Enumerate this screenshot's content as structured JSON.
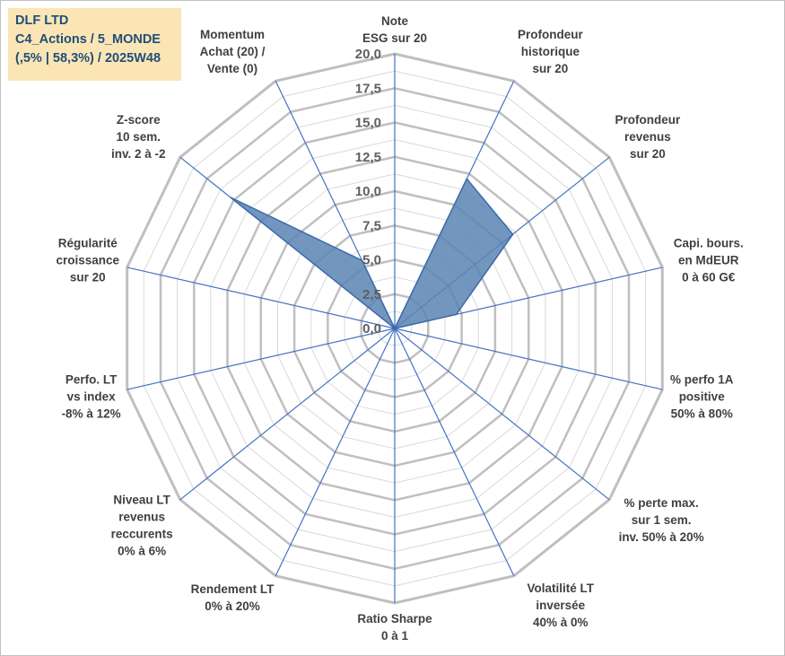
{
  "title": {
    "line1": "DLF LTD",
    "line2": "C4_Actions / 5_MONDE",
    "line3": "(,5% | 58,3%) / 2025W48"
  },
  "chart_data": {
    "type": "radar",
    "r_range": [
      0,
      20
    ],
    "tick_labels": [
      "0,0",
      "2,5",
      "5,0",
      "7,5",
      "10,0",
      "12,5",
      "15,0",
      "17,5",
      "20,0"
    ],
    "axes": [
      [
        "Note",
        "ESG sur 20"
      ],
      [
        "Profondeur",
        "historique",
        "sur 20"
      ],
      [
        "Profondeur",
        "revenus",
        "sur 20"
      ],
      [
        "Capi. bours.",
        "en MdEUR",
        "0 à 60 G€"
      ],
      [
        "% perfo 1A",
        "positive",
        "50% à 80%"
      ],
      [
        "% perte max.",
        "sur 1 sem.",
        "inv. 50% à 20%"
      ],
      [
        "Volatilité LT",
        "inversée",
        "40% à 0%"
      ],
      [
        "Ratio Sharpe",
        "0 à 1"
      ],
      [
        "Rendement LT",
        "0% à 20%"
      ],
      [
        "Niveau LT",
        "revenus",
        "reccurents",
        "0% à 6%"
      ],
      [
        "Perfo. LT",
        "vs index",
        "-8% à 12%"
      ],
      [
        "Régularité",
        "croissance",
        "sur 20"
      ],
      [
        "Z-score",
        "10 sem.",
        "inv. 2 à -2"
      ],
      [
        "Momentum",
        "Achat (20) /",
        "Vente (0)"
      ]
    ],
    "series": [
      {
        "values": [
          0,
          12.1,
          11.0,
          4.6,
          0,
          0,
          0,
          0,
          0,
          0,
          0,
          0,
          15.3,
          5.5
        ]
      }
    ],
    "colors": {
      "fill": "#5b84b4",
      "line": "#3a6aa8",
      "spoke": "#4472c4",
      "grid_major": "#bfbfbf",
      "grid_minor": "#d9d9d9"
    }
  }
}
